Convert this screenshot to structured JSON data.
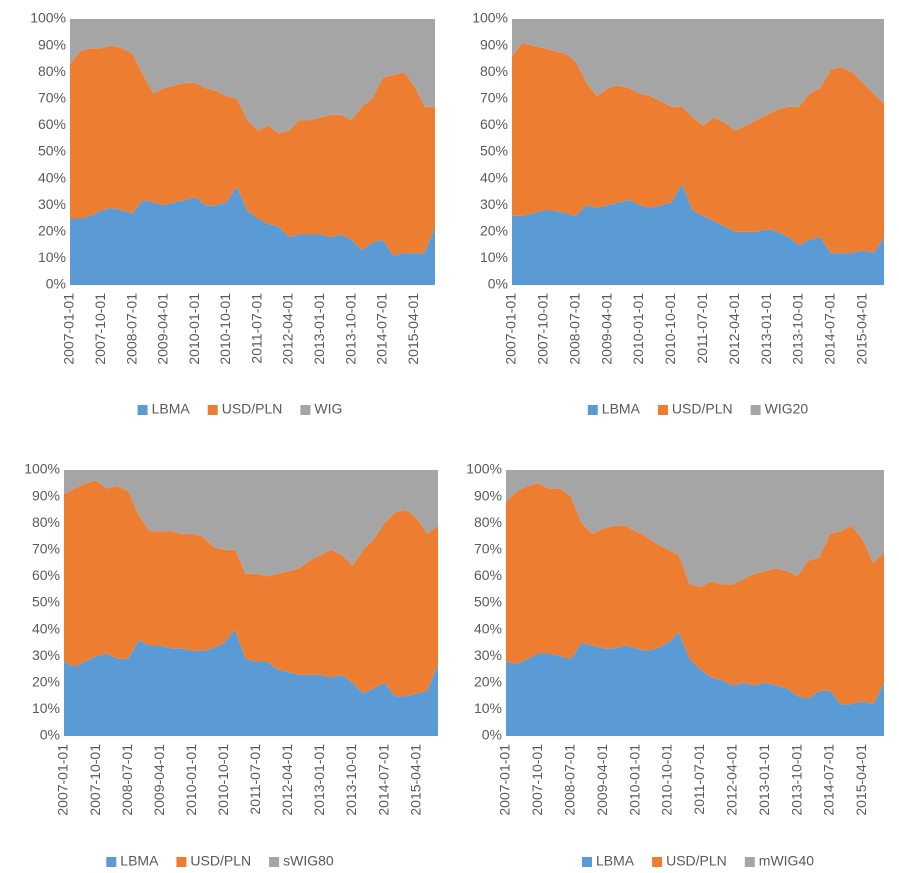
{
  "chart_data": [
    {
      "type": "stacked-area",
      "categories": [
        "2007-01-01",
        null,
        null,
        "2007-10-01",
        null,
        null,
        "2008-07-01",
        null,
        null,
        "2009-04-01",
        null,
        null,
        "2010-01-01",
        null,
        null,
        "2010-10-01",
        null,
        null,
        "2011-07-01",
        null,
        null,
        "2012-04-01",
        null,
        null,
        "2013-01-01",
        null,
        null,
        "2013-10-01",
        null,
        null,
        "2014-07-01",
        null,
        null,
        "2015-04-01",
        null,
        null
      ],
      "series": [
        {
          "name": "LBMA",
          "color": "#5b9bd5",
          "values": [
            25,
            25,
            26,
            28,
            29,
            28,
            27,
            32,
            31,
            30,
            31,
            32,
            33,
            30,
            30,
            31,
            37,
            28,
            25,
            23,
            22,
            18,
            19,
            19,
            19,
            18,
            19,
            17,
            13,
            16,
            17,
            11,
            12,
            12,
            12,
            22
          ]
        },
        {
          "name": "USD/PLN",
          "color": "#ed7d31",
          "values": [
            58,
            63,
            63,
            61,
            61,
            61,
            60,
            47,
            41,
            44,
            44,
            44,
            43,
            44,
            43,
            40,
            33,
            34,
            33,
            37,
            35,
            40,
            43,
            43,
            44,
            46,
            45,
            45,
            54,
            54,
            61,
            68,
            68,
            63,
            55,
            45
          ]
        },
        {
          "name": "WIG",
          "color": "#a5a5a5",
          "values": [
            17,
            12,
            11,
            11,
            10,
            11,
            13,
            21,
            28,
            26,
            25,
            24,
            24,
            26,
            27,
            29,
            30,
            38,
            42,
            40,
            43,
            42,
            38,
            38,
            37,
            36,
            36,
            38,
            33,
            30,
            22,
            21,
            20,
            25,
            33,
            33
          ]
        }
      ],
      "ylim": [
        0,
        100
      ],
      "yticks": [
        {
          "value": 0,
          "label": "0%"
        },
        {
          "value": 10,
          "label": "10%"
        },
        {
          "value": 20,
          "label": "20%"
        },
        {
          "value": 30,
          "label": "30%"
        },
        {
          "value": 40,
          "label": "40%"
        },
        {
          "value": 50,
          "label": "50%"
        },
        {
          "value": 60,
          "label": "60%"
        },
        {
          "value": 70,
          "label": "70%"
        },
        {
          "value": 80,
          "label": "80%"
        },
        {
          "value": 90,
          "label": "90%"
        },
        {
          "value": 100,
          "label": "100%"
        }
      ],
      "grid": false,
      "legend": "bottom"
    },
    {
      "type": "stacked-area",
      "categories": [
        "2007-01-01",
        null,
        null,
        "2007-10-01",
        null,
        null,
        "2008-07-01",
        null,
        null,
        "2009-04-01",
        null,
        null,
        "2010-01-01",
        null,
        null,
        "2010-10-01",
        null,
        null,
        "2011-07-01",
        null,
        null,
        "2012-04-01",
        null,
        null,
        "2013-01-01",
        null,
        null,
        "2013-10-01",
        null,
        null,
        "2014-07-01",
        null,
        null,
        "2015-04-01",
        null,
        null
      ],
      "series": [
        {
          "name": "LBMA",
          "color": "#5b9bd5",
          "values": [
            26,
            26,
            27,
            28,
            28,
            27,
            26,
            30,
            29,
            30,
            31,
            32,
            30,
            29,
            30,
            31,
            38,
            28,
            26,
            24,
            22,
            20,
            20,
            20,
            21,
            20,
            18,
            15,
            17,
            18,
            12,
            12,
            12,
            13,
            12,
            18
          ]
        },
        {
          "name": "USD/PLN",
          "color": "#ed7d31",
          "values": [
            60,
            65,
            63,
            61,
            60,
            60,
            58,
            46,
            42,
            44,
            44,
            42,
            42,
            42,
            39,
            36,
            29,
            35,
            34,
            39,
            39,
            38,
            40,
            42,
            43,
            46,
            49,
            52,
            55,
            56,
            69,
            70,
            68,
            63,
            60,
            50
          ]
        },
        {
          "name": "WIG20",
          "color": "#a5a5a5",
          "values": [
            14,
            9,
            10,
            11,
            12,
            13,
            16,
            24,
            29,
            26,
            25,
            26,
            28,
            29,
            31,
            33,
            33,
            37,
            40,
            37,
            39,
            42,
            40,
            38,
            36,
            34,
            33,
            33,
            28,
            26,
            19,
            18,
            20,
            24,
            28,
            32
          ]
        }
      ],
      "ylim": [
        0,
        100
      ],
      "yticks": [
        {
          "value": 0,
          "label": "0%"
        },
        {
          "value": 10,
          "label": "10%"
        },
        {
          "value": 20,
          "label": "20%"
        },
        {
          "value": 30,
          "label": "30%"
        },
        {
          "value": 40,
          "label": "40%"
        },
        {
          "value": 50,
          "label": "50%"
        },
        {
          "value": 60,
          "label": "60%"
        },
        {
          "value": 70,
          "label": "70%"
        },
        {
          "value": 80,
          "label": "80%"
        },
        {
          "value": 90,
          "label": "90%"
        },
        {
          "value": 100,
          "label": "100%"
        }
      ],
      "grid": false,
      "legend": "bottom"
    },
    {
      "type": "stacked-area",
      "categories": [
        "2007-01-01",
        null,
        null,
        "2007-10-01",
        null,
        null,
        "2008-07-01",
        null,
        null,
        "2009-04-01",
        null,
        null,
        "2010-01-01",
        null,
        null,
        "2010-10-01",
        null,
        null,
        "2011-07-01",
        null,
        null,
        "2012-04-01",
        null,
        null,
        "2013-01-01",
        null,
        null,
        "2013-10-01",
        null,
        null,
        "2014-07-01",
        null,
        null,
        "2015-04-01",
        null,
        null
      ],
      "series": [
        {
          "name": "LBMA",
          "color": "#5b9bd5",
          "values": [
            28,
            26,
            28,
            30,
            31,
            29,
            29,
            36,
            34,
            34,
            33,
            33,
            32,
            32,
            33,
            35,
            40,
            29,
            28,
            28,
            25,
            24,
            23,
            23,
            23,
            22,
            23,
            20,
            16,
            18,
            20,
            15,
            15,
            16,
            17,
            27
          ]
        },
        {
          "name": "USD/PLN",
          "color": "#ed7d31",
          "values": [
            63,
            67,
            67,
            66,
            62,
            65,
            63,
            47,
            43,
            43,
            44,
            43,
            44,
            43,
            38,
            35,
            30,
            32,
            33,
            32,
            36,
            38,
            40,
            43,
            45,
            48,
            45,
            44,
            54,
            56,
            60,
            69,
            70,
            66,
            59,
            52
          ]
        },
        {
          "name": "sWIG80",
          "color": "#a5a5a5",
          "values": [
            9,
            7,
            5,
            4,
            7,
            6,
            8,
            17,
            23,
            23,
            23,
            24,
            24,
            25,
            29,
            30,
            30,
            39,
            39,
            40,
            39,
            38,
            37,
            34,
            32,
            30,
            32,
            36,
            30,
            26,
            20,
            16,
            15,
            18,
            24,
            21
          ]
        }
      ],
      "ylim": [
        0,
        100
      ],
      "yticks": [
        {
          "value": 0,
          "label": "0%"
        },
        {
          "value": 10,
          "label": "10%"
        },
        {
          "value": 20,
          "label": "20%"
        },
        {
          "value": 30,
          "label": "30%"
        },
        {
          "value": 40,
          "label": "40%"
        },
        {
          "value": 50,
          "label": "50%"
        },
        {
          "value": 60,
          "label": "60%"
        },
        {
          "value": 70,
          "label": "70%"
        },
        {
          "value": 80,
          "label": "80%"
        },
        {
          "value": 90,
          "label": "90%"
        },
        {
          "value": 100,
          "label": "100%"
        }
      ],
      "grid": false,
      "legend": "bottom"
    },
    {
      "type": "stacked-area",
      "categories": [
        "2007-01-01",
        null,
        null,
        "2007-10-01",
        null,
        null,
        "2008-07-01",
        null,
        null,
        "2009-04-01",
        null,
        null,
        "2010-01-01",
        null,
        null,
        "2010-10-01",
        null,
        null,
        "2011-07-01",
        null,
        null,
        "2012-04-01",
        null,
        null,
        "2013-01-01",
        null,
        null,
        "2013-10-01",
        null,
        null,
        "2014-07-01",
        null,
        null,
        "2015-04-01",
        null,
        null
      ],
      "series": [
        {
          "name": "LBMA",
          "color": "#5b9bd5",
          "values": [
            28,
            27,
            29,
            31,
            31,
            30,
            29,
            35,
            34,
            33,
            33,
            34,
            33,
            32,
            33,
            35,
            39,
            29,
            25,
            22,
            21,
            19,
            20,
            19,
            20,
            19,
            18,
            15,
            14,
            17,
            17,
            12,
            12,
            13,
            12,
            20
          ]
        },
        {
          "name": "USD/PLN",
          "color": "#ed7d31",
          "values": [
            60,
            65,
            65,
            64,
            62,
            63,
            61,
            45,
            42,
            45,
            46,
            45,
            44,
            43,
            39,
            35,
            29,
            28,
            31,
            36,
            36,
            38,
            39,
            42,
            42,
            44,
            44,
            45,
            52,
            50,
            59,
            65,
            67,
            61,
            53,
            49
          ]
        },
        {
          "name": "mWIG40",
          "color": "#a5a5a5",
          "values": [
            12,
            8,
            6,
            5,
            7,
            7,
            10,
            20,
            24,
            22,
            21,
            21,
            23,
            25,
            28,
            30,
            32,
            43,
            44,
            42,
            43,
            43,
            41,
            39,
            38,
            37,
            38,
            40,
            34,
            33,
            24,
            23,
            21,
            26,
            35,
            31
          ]
        }
      ],
      "ylim": [
        0,
        100
      ],
      "yticks": [
        {
          "value": 0,
          "label": "0%"
        },
        {
          "value": 10,
          "label": "10%"
        },
        {
          "value": 20,
          "label": "20%"
        },
        {
          "value": 30,
          "label": "30%"
        },
        {
          "value": 40,
          "label": "40%"
        },
        {
          "value": 50,
          "label": "50%"
        },
        {
          "value": 60,
          "label": "60%"
        },
        {
          "value": 70,
          "label": "70%"
        },
        {
          "value": 80,
          "label": "80%"
        },
        {
          "value": 90,
          "label": "90%"
        },
        {
          "value": 100,
          "label": "100%"
        }
      ],
      "grid": false,
      "legend": "bottom"
    }
  ]
}
